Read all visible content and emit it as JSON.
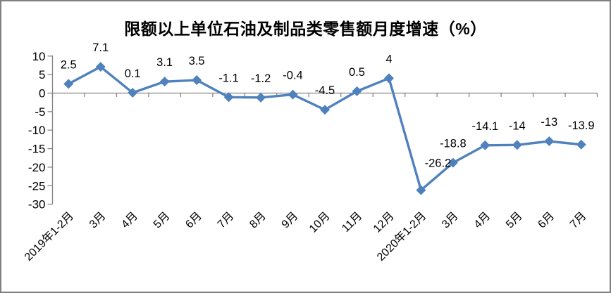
{
  "chart_data": {
    "type": "line",
    "title": "限额以上单位石油及制品类零售额月度增速（%）",
    "categories": [
      "2019年1-2月",
      "3月",
      "4月",
      "5月",
      "6月",
      "7月",
      "8月",
      "9月",
      "10月",
      "11月",
      "12月",
      "2020年1-2月",
      "3月",
      "4月",
      "5月",
      "6月",
      "7月"
    ],
    "series": [
      {
        "name": "限额以上单位石油及制品类零售额月度增速",
        "values": [
          2.5,
          7.1,
          0.1,
          3.1,
          3.5,
          -1.1,
          -1.2,
          -0.4,
          -4.5,
          0.5,
          4,
          -26.2,
          -18.8,
          -14.1,
          -14,
          -13,
          -13.9
        ],
        "point_labels": [
          "2.5",
          "7.1",
          "0.1",
          "3.1",
          "3.5",
          "-1.1",
          "-1.2",
          "-0.4",
          "-4.5",
          "0.5",
          "4",
          "-26.2",
          "-18.8",
          "-14.1",
          "-14",
          "-13",
          "-13.9"
        ]
      }
    ],
    "y_ticks": [
      "10",
      "5",
      "0",
      "-5",
      "-10",
      "-15",
      "-20",
      "-25",
      "-30"
    ],
    "ylim": [
      -30,
      10
    ],
    "xlabel": "",
    "ylabel": "",
    "grid": false,
    "legend_position": "none",
    "marker_shape": "diamond",
    "colors": {
      "series": "#4f81bd",
      "axis": "#868686",
      "label_text": "#000000",
      "frame_border": "#7f7f7f",
      "background": "#ffffff"
    }
  }
}
